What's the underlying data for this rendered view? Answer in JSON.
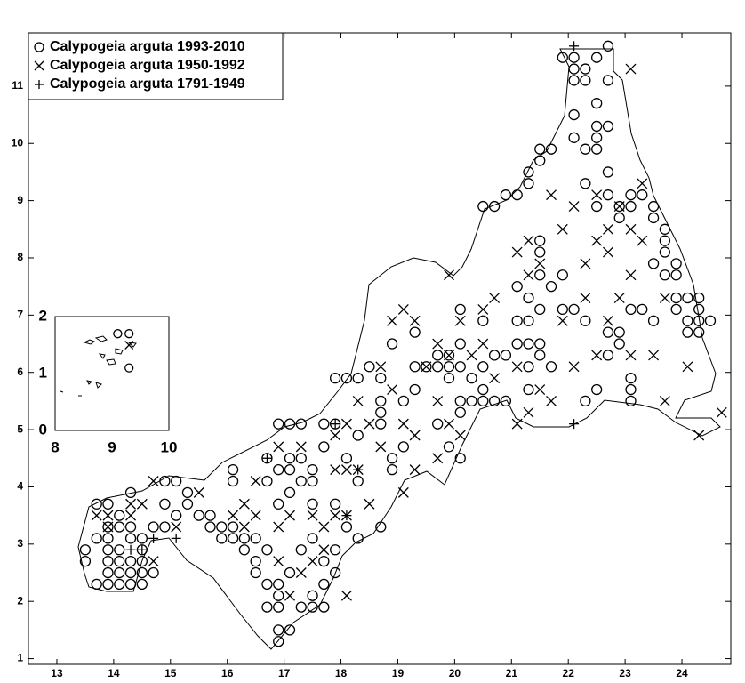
{
  "chart_data": [
    {
      "type": "scatter",
      "legend": "upper left",
      "xlim": [
        12.5,
        24.86
      ],
      "ylim": [
        0.9,
        11.93
      ],
      "xticks": [
        13,
        14,
        15,
        16,
        17,
        18,
        19,
        20,
        21,
        22,
        23,
        24
      ],
      "yticks": [
        1,
        2,
        3,
        4,
        5,
        6,
        7,
        8,
        9,
        10,
        11
      ],
      "series": [
        {
          "name": "Calypogeia arguta 1993-2010",
          "marker": "circle",
          "color": "#000000",
          "columns": [
            {
              "x": 13.5,
              "values": [
                2.9,
                2.7
              ]
            },
            {
              "x": 13.7,
              "values": [
                3.7,
                3.1,
                2.3
              ]
            },
            {
              "x": 13.9,
              "values": [
                3.7,
                3.3,
                3.1,
                2.9,
                2.7,
                2.5,
                2.3
              ]
            },
            {
              "x": 14.1,
              "values": [
                3.5,
                3.3,
                2.9,
                2.7,
                2.5,
                2.3
              ]
            },
            {
              "x": 14.3,
              "values": [
                3.9,
                3.3,
                3.1,
                2.7,
                2.5,
                2.3
              ]
            },
            {
              "x": 14.5,
              "values": [
                3.1,
                2.9,
                2.7,
                2.5,
                2.3
              ]
            },
            {
              "x": 14.7,
              "values": [
                3.3,
                2.5
              ]
            },
            {
              "x": 14.9,
              "values": [
                4.1,
                3.7,
                3.3
              ]
            },
            {
              "x": 15.1,
              "values": [
                4.1,
                3.5
              ]
            },
            {
              "x": 15.3,
              "values": [
                3.9,
                3.7
              ]
            },
            {
              "x": 15.5,
              "values": [
                3.5
              ]
            },
            {
              "x": 15.7,
              "values": [
                3.5,
                3.3
              ]
            },
            {
              "x": 15.9,
              "values": [
                3.3,
                3.1
              ]
            },
            {
              "x": 16.1,
              "values": [
                4.3,
                4.1,
                3.3,
                3.1
              ]
            },
            {
              "x": 16.3,
              "values": [
                3.1,
                2.9
              ]
            },
            {
              "x": 16.5,
              "values": [
                3.1,
                2.7,
                2.5
              ]
            },
            {
              "x": 16.7,
              "values": [
                4.5,
                4.1,
                2.9,
                2.3,
                1.9
              ]
            },
            {
              "x": 16.9,
              "values": [
                5.1,
                4.3,
                3.7,
                2.3,
                2.1,
                1.9,
                1.5,
                1.3
              ]
            },
            {
              "x": 17.1,
              "values": [
                5.1,
                4.5,
                4.3,
                3.9,
                2.5,
                1.5
              ]
            },
            {
              "x": 17.3,
              "values": [
                5.1,
                4.5,
                4.1,
                2.9,
                1.9
              ]
            },
            {
              "x": 17.5,
              "values": [
                4.3,
                4.1,
                3.7,
                3.1,
                2.1,
                1.9
              ]
            },
            {
              "x": 17.7,
              "values": [
                5.1,
                4.7,
                2.7,
                2.3,
                1.9
              ]
            },
            {
              "x": 17.9,
              "values": [
                5.9,
                5.1,
                3.7,
                2.9,
                2.5
              ]
            },
            {
              "x": 18.1,
              "values": [
                5.9,
                4.5,
                3.3
              ]
            },
            {
              "x": 18.3,
              "values": [
                5.9,
                4.9,
                4.1,
                3.1
              ]
            },
            {
              "x": 18.5,
              "values": [
                6.1
              ]
            },
            {
              "x": 18.7,
              "values": [
                5.9,
                5.5,
                5.3,
                5.1,
                3.3
              ]
            },
            {
              "x": 18.9,
              "values": [
                6.5,
                4.5,
                4.3
              ]
            },
            {
              "x": 19.1,
              "values": [
                5.5,
                4.7
              ]
            },
            {
              "x": 19.3,
              "values": [
                6.7,
                6.1,
                5.7
              ]
            },
            {
              "x": 19.5,
              "values": [
                6.1
              ]
            },
            {
              "x": 19.7,
              "values": [
                6.3,
                6.1,
                5.1
              ]
            },
            {
              "x": 19.9,
              "values": [
                6.3,
                6.1,
                5.9,
                4.7
              ]
            },
            {
              "x": 20.1,
              "values": [
                7.1,
                6.5,
                6.1,
                5.5,
                5.3,
                4.5
              ]
            },
            {
              "x": 20.3,
              "values": [
                5.9,
                5.5
              ]
            },
            {
              "x": 20.5,
              "values": [
                8.9,
                6.9,
                6.1,
                5.7,
                5.5
              ]
            },
            {
              "x": 20.7,
              "values": [
                8.9,
                6.3,
                5.5
              ]
            },
            {
              "x": 20.9,
              "values": [
                9.1,
                6.3,
                5.5
              ]
            },
            {
              "x": 21.1,
              "values": [
                9.1,
                7.5,
                6.9,
                6.5
              ]
            },
            {
              "x": 21.3,
              "values": [
                9.5,
                9.3,
                7.3,
                6.9,
                6.5,
                6.1,
                5.7
              ]
            },
            {
              "x": 21.5,
              "values": [
                9.9,
                9.7,
                8.3,
                8.1,
                7.7,
                7.1,
                6.5,
                6.3
              ]
            },
            {
              "x": 21.7,
              "values": [
                9.9,
                7.5,
                6.1
              ]
            },
            {
              "x": 21.9,
              "values": [
                11.5,
                7.7,
                7.1
              ]
            },
            {
              "x": 22.1,
              "values": [
                11.5,
                11.3,
                11.1,
                10.5,
                10.1,
                7.1
              ]
            },
            {
              "x": 22.3,
              "values": [
                11.3,
                11.1,
                9.9,
                9.3,
                6.9,
                5.5
              ]
            },
            {
              "x": 22.5,
              "values": [
                11.5,
                10.7,
                10.3,
                10.1,
                9.9,
                8.9,
                5.7
              ]
            },
            {
              "x": 22.7,
              "values": [
                11.7,
                11.1,
                10.3,
                9.5,
                9.1,
                6.7,
                6.3
              ]
            },
            {
              "x": 22.9,
              "values": [
                8.9,
                8.7,
                6.7,
                6.5
              ]
            },
            {
              "x": 23.1,
              "values": [
                9.1,
                8.9,
                7.1,
                5.9,
                5.7,
                5.5
              ]
            },
            {
              "x": 23.3,
              "values": [
                9.1,
                7.1
              ]
            },
            {
              "x": 23.5,
              "values": [
                8.9,
                8.7,
                7.9,
                6.9
              ]
            },
            {
              "x": 23.7,
              "values": [
                8.5,
                8.3,
                8.1,
                7.7
              ]
            },
            {
              "x": 23.9,
              "values": [
                7.9,
                7.7,
                7.3,
                7.1
              ]
            },
            {
              "x": 24.1,
              "values": [
                7.3,
                6.9,
                6.7
              ]
            },
            {
              "x": 24.3,
              "values": [
                7.3,
                7.1,
                6.9,
                6.7
              ]
            },
            {
              "x": 24.5,
              "values": [
                6.9
              ]
            }
          ]
        },
        {
          "name": "Calypogeia arguta 1950-1992",
          "marker": "cross",
          "color": "#000000",
          "columns": [
            {
              "x": 13.7,
              "values": [
                3.5
              ]
            },
            {
              "x": 13.9,
              "values": [
                3.5,
                3.3
              ]
            },
            {
              "x": 14.3,
              "values": [
                3.7,
                3.5
              ]
            },
            {
              "x": 14.5,
              "values": [
                3.7
              ]
            },
            {
              "x": 14.7,
              "values": [
                4.1,
                2.7
              ]
            },
            {
              "x": 15.1,
              "values": [
                3.3
              ]
            },
            {
              "x": 15.5,
              "values": [
                3.9
              ]
            },
            {
              "x": 16.1,
              "values": [
                3.5
              ]
            },
            {
              "x": 16.3,
              "values": [
                3.7,
                3.3
              ]
            },
            {
              "x": 16.5,
              "values": [
                4.1,
                3.5
              ]
            },
            {
              "x": 16.9,
              "values": [
                4.7,
                3.3,
                2.7
              ]
            },
            {
              "x": 17.1,
              "values": [
                3.5,
                2.1
              ]
            },
            {
              "x": 17.3,
              "values": [
                4.7,
                2.5
              ]
            },
            {
              "x": 17.5,
              "values": [
                3.5,
                2.7
              ]
            },
            {
              "x": 17.7,
              "values": [
                3.3,
                2.9
              ]
            },
            {
              "x": 17.9,
              "values": [
                4.9,
                4.3,
                3.5
              ]
            },
            {
              "x": 18.1,
              "values": [
                5.1,
                4.3,
                3.5,
                2.1
              ]
            },
            {
              "x": 18.3,
              "values": [
                5.5,
                4.3
              ]
            },
            {
              "x": 18.5,
              "values": [
                5.1,
                3.7
              ]
            },
            {
              "x": 18.7,
              "values": [
                6.1,
                4.7
              ]
            },
            {
              "x": 18.9,
              "values": [
                6.9,
                5.7
              ]
            },
            {
              "x": 19.1,
              "values": [
                7.1,
                5.1,
                3.9
              ]
            },
            {
              "x": 19.3,
              "values": [
                6.9,
                4.9,
                4.3
              ]
            },
            {
              "x": 19.5,
              "values": [
                6.1
              ]
            },
            {
              "x": 19.7,
              "values": [
                6.5,
                5.5,
                4.5
              ]
            },
            {
              "x": 19.9,
              "values": [
                7.7,
                6.3,
                5.1
              ]
            },
            {
              "x": 20.1,
              "values": [
                6.9,
                4.9
              ]
            },
            {
              "x": 20.3,
              "values": [
                6.3
              ]
            },
            {
              "x": 20.5,
              "values": [
                7.1,
                6.5
              ]
            },
            {
              "x": 20.7,
              "values": [
                7.3,
                5.9
              ]
            },
            {
              "x": 21.1,
              "values": [
                8.1,
                6.1,
                5.1
              ]
            },
            {
              "x": 21.3,
              "values": [
                8.3,
                7.7,
                5.3
              ]
            },
            {
              "x": 21.5,
              "values": [
                7.9,
                5.7
              ]
            },
            {
              "x": 21.7,
              "values": [
                9.1,
                5.5
              ]
            },
            {
              "x": 21.9,
              "values": [
                8.5,
                6.9
              ]
            },
            {
              "x": 22.1,
              "values": [
                8.9,
                6.1
              ]
            },
            {
              "x": 22.3,
              "values": [
                7.9,
                7.3
              ]
            },
            {
              "x": 22.5,
              "values": [
                9.1,
                8.3,
                6.3
              ]
            },
            {
              "x": 22.7,
              "values": [
                8.5,
                8.1,
                6.9
              ]
            },
            {
              "x": 22.9,
              "values": [
                8.9,
                7.3
              ]
            },
            {
              "x": 23.1,
              "values": [
                11.3,
                8.5,
                7.7,
                6.3
              ]
            },
            {
              "x": 23.3,
              "values": [
                9.3,
                8.3
              ]
            },
            {
              "x": 23.5,
              "values": [
                6.3
              ]
            },
            {
              "x": 23.7,
              "values": [
                7.3,
                5.5
              ]
            },
            {
              "x": 24.1,
              "values": [
                6.1
              ]
            },
            {
              "x": 24.3,
              "values": [
                4.9
              ]
            },
            {
              "x": 24.7,
              "values": [
                5.3
              ]
            }
          ]
        },
        {
          "name": "Calypogeia arguta 1791-1949",
          "marker": "plus",
          "color": "#000000",
          "columns": [
            {
              "x": 14.3,
              "values": [
                2.9
              ]
            },
            {
              "x": 14.5,
              "values": [
                2.9
              ]
            },
            {
              "x": 14.7,
              "values": [
                3.1
              ]
            },
            {
              "x": 15.1,
              "values": [
                3.1
              ]
            },
            {
              "x": 16.7,
              "values": [
                4.5
              ]
            },
            {
              "x": 17.9,
              "values": [
                5.1
              ]
            },
            {
              "x": 18.1,
              "values": [
                3.5
              ]
            },
            {
              "x": 18.3,
              "values": [
                4.3
              ]
            },
            {
              "x": 22.1,
              "values": [
                5.1,
                11.7
              ]
            }
          ]
        }
      ]
    },
    {
      "type": "scatter",
      "xlim": [
        8,
        10
      ],
      "ylim": [
        0,
        2
      ],
      "xticks": [
        8,
        9,
        10
      ],
      "yticks": [
        0,
        1,
        2
      ],
      "series": [
        {
          "marker": "circle",
          "color": "#000000",
          "columns": [
            {
              "x": 9.1,
              "values": [
                1.7
              ]
            },
            {
              "x": 9.3,
              "values": [
                1.7,
                1.1
              ]
            }
          ]
        },
        {
          "marker": "cross",
          "color": "#000000",
          "columns": [
            {
              "x": 9.3,
              "values": [
                1.5
              ]
            }
          ]
        }
      ]
    }
  ]
}
